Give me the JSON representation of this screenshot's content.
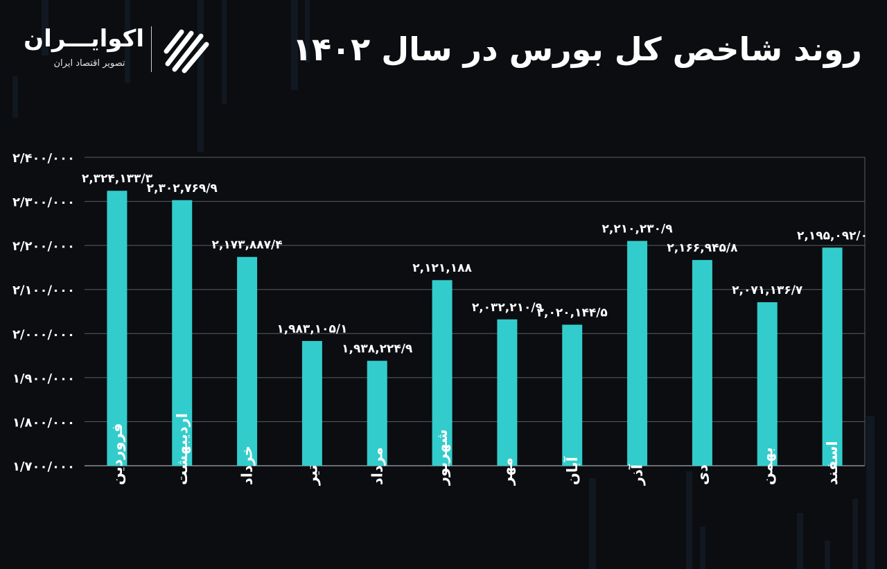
{
  "header": {
    "title": "روند شاخص کل بورس در سال ۱۴۰۲"
  },
  "logo": {
    "name": "اکوایـــران",
    "tagline": "تصویر اقتصاد ایران",
    "icon": "ecoiran-logo-mark"
  },
  "colors": {
    "background": "#0b0d10",
    "bar": "#33cccc",
    "grid": "#5a5f66",
    "text": "#ffffff"
  },
  "chart_data": {
    "type": "bar",
    "title": "روند شاخص کل بورس در سال ۱۴۰۲",
    "xlabel": "",
    "ylabel": "",
    "ylim": [
      1700000,
      2400000
    ],
    "grid": true,
    "legend": "none",
    "yticks": [
      {
        "value": 1700000,
        "label": "۱/۷۰۰/۰۰۰"
      },
      {
        "value": 1800000,
        "label": "۱/۸۰۰/۰۰۰"
      },
      {
        "value": 1900000,
        "label": "۱/۹۰۰/۰۰۰"
      },
      {
        "value": 2000000,
        "label": "۲/۰۰۰/۰۰۰"
      },
      {
        "value": 2100000,
        "label": "۲/۱۰۰/۰۰۰"
      },
      {
        "value": 2200000,
        "label": "۲/۲۰۰/۰۰۰"
      },
      {
        "value": 2300000,
        "label": "۲/۳۰۰/۰۰۰"
      },
      {
        "value": 2400000,
        "label": "۲/۴۰۰/۰۰۰"
      }
    ],
    "categories": [
      "فروردین",
      "اردیبهشت",
      "خرداد",
      "تیر",
      "مرداد",
      "شهریور",
      "مهر",
      "آبان",
      "آذر",
      "دی",
      "بهمن",
      "اسفند"
    ],
    "values": [
      2324133.3,
      2302769.9,
      2173887.4,
      1983105.1,
      1938224.9,
      2121188,
      2032210.9,
      2020144.5,
      2210230.9,
      2166945.8,
      2071136.7,
      2195092.0
    ],
    "labels": [
      "۲,۳۲۴,۱۳۳/۳",
      "۲,۳۰۲,۷۶۹/۹",
      "۲,۱۷۳,۸۸۷/۴",
      "۱,۹۸۳,۱۰۵/۱",
      "۱,۹۳۸,۲۲۴/۹",
      "۲,۱۲۱,۱۸۸",
      "۲,۰۳۲,۲۱۰/۹",
      "۲,۰۲۰,۱۴۴/۵",
      "۲,۲۱۰,۲۳۰/۹",
      "۲,۱۶۶,۹۴۵/۸",
      "۲,۰۷۱,۱۳۶/۷",
      "۲,۱۹۵,۰۹۲/۰"
    ]
  }
}
